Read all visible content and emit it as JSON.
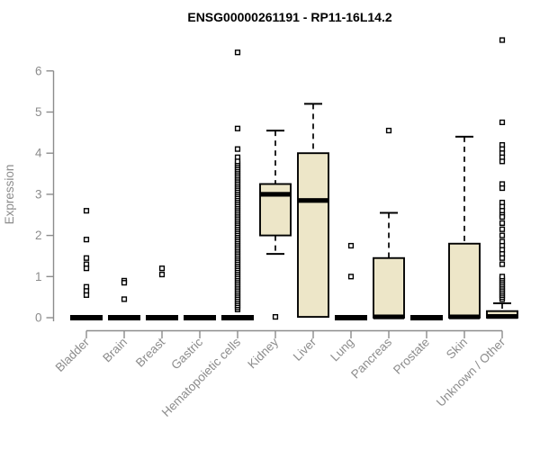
{
  "title": "ENSG00000261191 - RP11-16L14.2",
  "colors": {
    "background": "#ffffff",
    "box_fill": "#ede6c8",
    "box_border": "#000000",
    "median": "#000000",
    "whisker": "#000000",
    "outlier_stroke": "#000000",
    "outlier_fill": "#ffffff",
    "axis": "#8c8c8c",
    "title": "#000000"
  },
  "chart_data": {
    "type": "boxplot",
    "title": "ENSG00000261191 - RP11-16L14.2",
    "xlabel": "",
    "ylabel": "Expression",
    "ylim": [
      0,
      6.8
    ],
    "yticks": [
      0,
      1,
      2,
      3,
      4,
      5,
      6
    ],
    "grid": false,
    "legend": false,
    "categories": [
      "Bladder",
      "Brain",
      "Breast",
      "Gastric",
      "Hematopoietic cells",
      "Kidney",
      "Liver",
      "Lung",
      "Pancreas",
      "Prostate",
      "Skin",
      "Unknown / Other"
    ],
    "boxes": [
      {
        "category": "Bladder",
        "q1": 0,
        "median": 0,
        "q3": 0,
        "whisker_low": 0,
        "whisker_high": 0,
        "outliers": [
          2.6,
          1.9,
          1.45,
          1.3,
          1.2,
          0.75,
          0.65,
          0.55
        ],
        "outlier_stacks": []
      },
      {
        "category": "Brain",
        "q1": 0,
        "median": 0,
        "q3": 0,
        "whisker_low": 0,
        "whisker_high": 0,
        "outliers": [
          0.9,
          0.85,
          0.45
        ],
        "outlier_stacks": []
      },
      {
        "category": "Breast",
        "q1": 0,
        "median": 0,
        "q3": 0,
        "whisker_low": 0,
        "whisker_high": 0,
        "outliers": [
          1.2,
          1.05
        ],
        "outlier_stacks": []
      },
      {
        "category": "Gastric",
        "q1": 0,
        "median": 0,
        "q3": 0,
        "whisker_low": 0,
        "whisker_high": 0,
        "outliers": [],
        "outlier_stacks": []
      },
      {
        "category": "Hematopoietic cells",
        "q1": 0,
        "median": 0,
        "q3": 0,
        "whisker_low": 0,
        "whisker_high": 0,
        "outliers": [
          6.45,
          4.6,
          4.1,
          3.9
        ],
        "outlier_stacks": [
          {
            "from": 0.2,
            "to": 3.8,
            "step": 0.05
          }
        ]
      },
      {
        "category": "Kidney",
        "q1": 2.0,
        "median": 3.0,
        "q3": 3.25,
        "whisker_low": 1.55,
        "whisker_high": 4.55,
        "outliers": [
          0.02
        ],
        "outlier_stacks": []
      },
      {
        "category": "Liver",
        "q1": 0.02,
        "median": 2.85,
        "q3": 4.0,
        "whisker_low": 0.02,
        "whisker_high": 5.2,
        "outliers": [],
        "outlier_stacks": []
      },
      {
        "category": "Lung",
        "q1": 0,
        "median": 0,
        "q3": 0,
        "whisker_low": 0,
        "whisker_high": 0,
        "outliers": [
          1.75,
          1.0
        ],
        "outlier_stacks": []
      },
      {
        "category": "Pancreas",
        "q1": 0,
        "median": 0.02,
        "q3": 1.45,
        "whisker_low": 0,
        "whisker_high": 2.55,
        "outliers": [
          4.55
        ],
        "outlier_stacks": []
      },
      {
        "category": "Prostate",
        "q1": 0,
        "median": 0,
        "q3": 0,
        "whisker_low": 0,
        "whisker_high": 0,
        "outliers": [],
        "outlier_stacks": []
      },
      {
        "category": "Skin",
        "q1": 0,
        "median": 0.02,
        "q3": 1.8,
        "whisker_low": 0,
        "whisker_high": 4.4,
        "outliers": [],
        "outlier_stacks": []
      },
      {
        "category": "Unknown / Other",
        "q1": 0,
        "median": 0.03,
        "q3": 0.16,
        "whisker_low": 0,
        "whisker_high": 0.35,
        "outliers": [
          6.75,
          4.75,
          4.2,
          4.1,
          4.0,
          3.9,
          3.8,
          3.25,
          3.15,
          2.8,
          2.7,
          2.6,
          2.5,
          2.45,
          2.3,
          2.15,
          2.0,
          1.85,
          1.75,
          1.65,
          1.55,
          1.45,
          1.3
        ],
        "outlier_stacks": [
          {
            "from": 0.45,
            "to": 1.0,
            "step": 0.05
          }
        ]
      }
    ]
  }
}
